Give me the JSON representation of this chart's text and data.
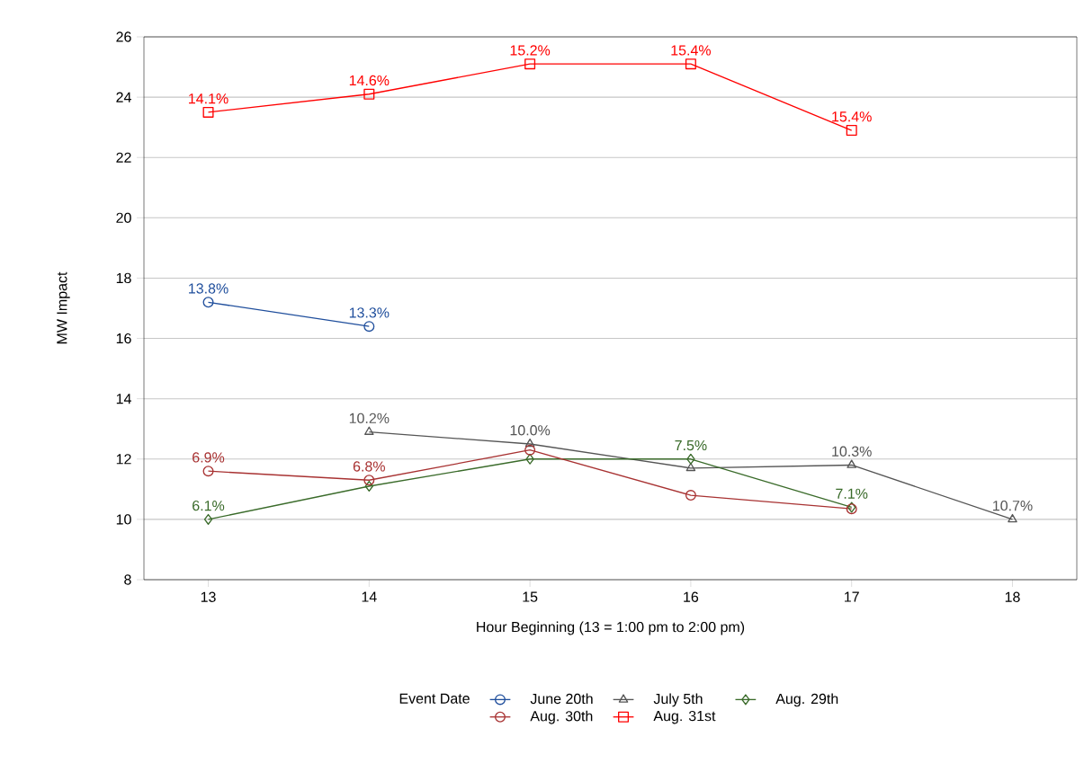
{
  "chart_data": {
    "type": "line",
    "xlabel": "Hour Beginning (13 = 1:00 pm to 2:00 pm)",
    "ylabel": "MW Impact",
    "legend_title": "Event Date",
    "xlim": [
      12.6,
      18.4
    ],
    "xticks": [
      13,
      14,
      15,
      16,
      17,
      18
    ],
    "ylim": [
      8,
      26
    ],
    "yticks": [
      8,
      10,
      12,
      14,
      16,
      18,
      20,
      22,
      24,
      26
    ],
    "grid": "y",
    "legend": "bottom",
    "series": [
      {
        "name": "June 20th",
        "color": "#1f4e9c",
        "marker": "circle",
        "x": [
          13,
          14
        ],
        "values": [
          17.2,
          16.4
        ]
      },
      {
        "name": "July 5th",
        "color": "#555555",
        "marker": "triangle",
        "x": [
          14,
          15,
          16,
          17,
          18
        ],
        "values": [
          12.9,
          12.5,
          11.7,
          11.8,
          10.0
        ]
      },
      {
        "name": "Aug. 29th",
        "color": "#3a6b2a",
        "marker": "diamond",
        "x": [
          13,
          14,
          15,
          16,
          17
        ],
        "values": [
          10.0,
          11.1,
          12.0,
          12.0,
          10.4
        ]
      },
      {
        "name": "Aug. 30th",
        "color": "#a83232",
        "marker": "circle",
        "x": [
          13,
          14,
          15,
          16,
          17
        ],
        "values": [
          11.6,
          11.3,
          12.3,
          10.8,
          10.35
        ]
      },
      {
        "name": "Aug. 31st",
        "color": "#ff0000",
        "marker": "square",
        "x": [
          13,
          14,
          15,
          16,
          17
        ],
        "values": [
          23.5,
          24.1,
          25.1,
          25.1,
          22.9
        ]
      }
    ],
    "annotations": [
      {
        "text": "13.8%",
        "x": 13,
        "y": 17.2
      },
      {
        "text": "13.3%",
        "x": 14,
        "y": 16.4
      },
      {
        "text": "10.2%",
        "x": 14,
        "y": 12.9
      },
      {
        "text": "10.0%",
        "x": 15,
        "y": 12.5
      },
      {
        "text": "10.3%",
        "x": 17,
        "y": 11.8
      },
      {
        "text": "10.7%",
        "x": 18,
        "y": 10.0
      },
      {
        "text": "6.1%",
        "x": 13,
        "y": 10.0
      },
      {
        "text": "7.5%",
        "x": 16,
        "y": 12.0
      },
      {
        "text": "7.1%",
        "x": 17,
        "y": 10.4
      },
      {
        "text": "6.9%",
        "x": 13,
        "y": 11.6
      },
      {
        "text": "6.8%",
        "x": 14,
        "y": 11.3
      },
      {
        "text": "14.1%",
        "x": 13,
        "y": 23.5
      },
      {
        "text": "14.6%",
        "x": 14,
        "y": 24.1
      },
      {
        "text": "15.2%",
        "x": 15,
        "y": 25.1
      },
      {
        "text": "15.4%",
        "x": 16,
        "y": 25.1
      },
      {
        "text": "15.4%",
        "x": 17,
        "y": 22.9
      }
    ]
  }
}
